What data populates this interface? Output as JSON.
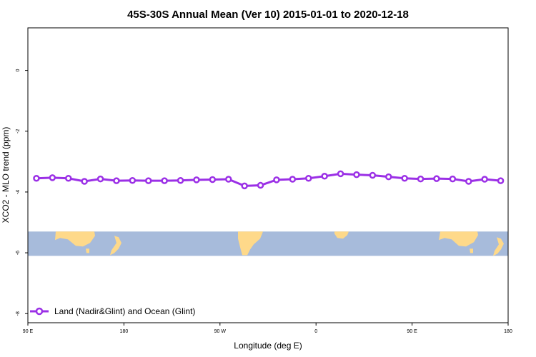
{
  "chart_data": {
    "type": "line",
    "title": "45S-30S Annual Mean (Ver 10)   2015-01-01 to 2020-12-18",
    "xlabel": "Longitude (deg E)",
    "ylabel": "XCO2 - MLO trend (ppm)",
    "x_ticks": [
      {
        "value": 90,
        "label": "90 E"
      },
      {
        "value": 180,
        "label": "180"
      },
      {
        "value": 270,
        "label": "90 W"
      },
      {
        "value": 360,
        "label": "0"
      },
      {
        "value": 450,
        "label": "90 E"
      },
      {
        "value": 540,
        "label": "180"
      }
    ],
    "y_ticks": [
      0,
      -2,
      -4,
      -6,
      -8
    ],
    "xlim": [
      90,
      540
    ],
    "ylim": [
      -8.3,
      1.4
    ],
    "grid": false,
    "legend_position": "bottom-left",
    "series": [
      {
        "name": "Land (Nadir&Glint) and Ocean (Glint)",
        "color": "#9b30e6",
        "x": [
          98,
          113,
          128,
          143,
          158,
          173,
          188,
          203,
          218,
          233,
          248,
          263,
          278,
          293,
          308,
          323,
          338,
          353,
          368,
          383,
          398,
          413,
          428,
          443,
          458,
          473,
          488,
          503,
          518,
          533
        ],
        "y": [
          -3.55,
          -3.53,
          -3.55,
          -3.65,
          -3.57,
          -3.63,
          -3.62,
          -3.63,
          -3.63,
          -3.62,
          -3.6,
          -3.59,
          -3.58,
          -3.8,
          -3.78,
          -3.6,
          -3.58,
          -3.55,
          -3.48,
          -3.4,
          -3.43,
          -3.45,
          -3.5,
          -3.55,
          -3.57,
          -3.56,
          -3.57,
          -3.65,
          -3.58,
          -3.63
        ]
      }
    ],
    "map_band": {
      "y_top": -5.3,
      "y_bottom": -6.1,
      "ocean_color": "#a7bbdb",
      "land_color": "#fed98a"
    }
  }
}
